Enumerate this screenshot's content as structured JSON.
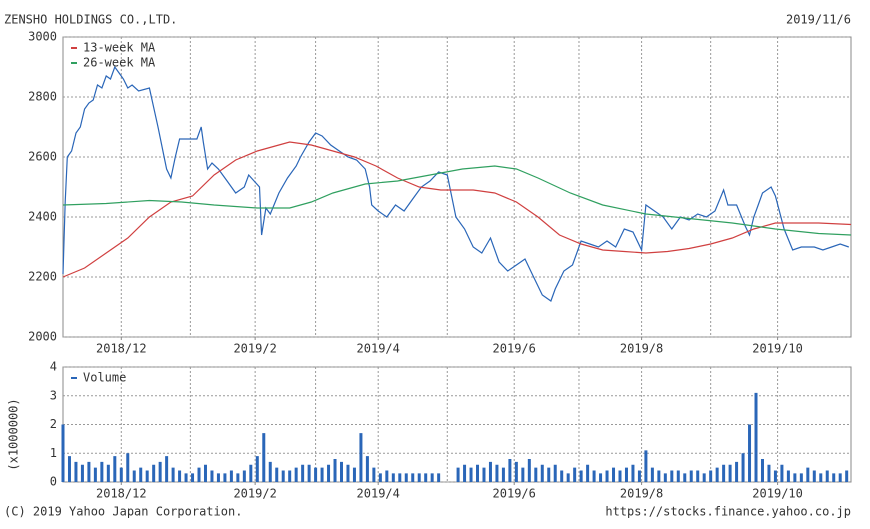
{
  "header": {
    "title": "ZENSHO HOLDINGS CO.,LTD.",
    "date": "2019/11/6"
  },
  "footer": {
    "copyright": "(C) 2019 Yahoo Japan Corporation.",
    "source": "https://stocks.finance.yahoo.co.jp"
  },
  "chart_data": [
    {
      "type": "line",
      "legend": "upper left",
      "grid": true,
      "xlim": [
        0,
        365
      ],
      "xticks": [
        {
          "value": 27,
          "label": "2018/12"
        },
        {
          "value": 89,
          "label": "2019/2"
        },
        {
          "value": 146,
          "label": "2019/4"
        },
        {
          "value": 209,
          "label": "2019/6"
        },
        {
          "value": 268,
          "label": "2019/8"
        },
        {
          "value": 331,
          "label": "2019/10"
        }
      ],
      "xgrid": [
        27,
        59,
        89,
        117,
        146,
        178,
        209,
        239,
        268,
        300,
        331
      ],
      "ylim": [
        2000,
        3000
      ],
      "yticks": [
        2000,
        2200,
        2400,
        2600,
        2800,
        3000
      ],
      "series": [
        {
          "color": "#2a66b8",
          "x": [
            0,
            1,
            2,
            4,
            6,
            8,
            10,
            12,
            14,
            16,
            18,
            20,
            22,
            24,
            26,
            28,
            30,
            32,
            35,
            40,
            44,
            48,
            50,
            52,
            54,
            58,
            62,
            64,
            65,
            67,
            69,
            72,
            76,
            80,
            84,
            86,
            91,
            92,
            94,
            96,
            100,
            104,
            108,
            110,
            114,
            117,
            120,
            124,
            128,
            132,
            136,
            140,
            142,
            143,
            146,
            150,
            154,
            158,
            162,
            166,
            170,
            174,
            178,
            182,
            186,
            190,
            194,
            198,
            202,
            206,
            210,
            214,
            218,
            222,
            226,
            228,
            232,
            236,
            240,
            244,
            248,
            252,
            256,
            260,
            264,
            268,
            270,
            274,
            278,
            282,
            286,
            290,
            294,
            298,
            302,
            306,
            308,
            312,
            316,
            318,
            320,
            322,
            324,
            328,
            330,
            334,
            338,
            342,
            348,
            352,
            356,
            360,
            364
          ],
          "values": [
            2210,
            2450,
            2600,
            2620,
            2680,
            2700,
            2760,
            2780,
            2790,
            2840,
            2830,
            2870,
            2860,
            2900,
            2880,
            2860,
            2830,
            2840,
            2820,
            2830,
            2700,
            2560,
            2530,
            2600,
            2660,
            2660,
            2660,
            2700,
            2650,
            2560,
            2580,
            2560,
            2520,
            2480,
            2500,
            2540,
            2500,
            2340,
            2430,
            2410,
            2480,
            2530,
            2570,
            2600,
            2650,
            2680,
            2670,
            2640,
            2620,
            2600,
            2590,
            2560,
            2500,
            2440,
            2420,
            2400,
            2440,
            2420,
            2460,
            2500,
            2520,
            2550,
            2540,
            2400,
            2360,
            2300,
            2280,
            2330,
            2250,
            2220,
            2240,
            2260,
            2200,
            2140,
            2120,
            2160,
            2220,
            2240,
            2320,
            2310,
            2300,
            2320,
            2300,
            2360,
            2350,
            2290,
            2440,
            2420,
            2400,
            2360,
            2400,
            2390,
            2410,
            2400,
            2420,
            2490,
            2440,
            2440,
            2370,
            2340,
            2400,
            2440,
            2480,
            2500,
            2470,
            2360,
            2290,
            2300,
            2300,
            2290,
            2300,
            2310,
            2300
          ]
        },
        {
          "name": "13-week MA",
          "color": "#d04040",
          "x": [
            0,
            10,
            20,
            30,
            40,
            50,
            60,
            70,
            80,
            90,
            100,
            105,
            115,
            125,
            135,
            145,
            155,
            165,
            175,
            190,
            200,
            210,
            220,
            230,
            240,
            250,
            260,
            270,
            280,
            290,
            300,
            310,
            320,
            330,
            340,
            350,
            365
          ],
          "values": [
            2200,
            2230,
            2280,
            2330,
            2400,
            2450,
            2470,
            2540,
            2590,
            2620,
            2640,
            2650,
            2640,
            2620,
            2600,
            2570,
            2530,
            2500,
            2490,
            2490,
            2480,
            2450,
            2400,
            2340,
            2310,
            2290,
            2285,
            2280,
            2285,
            2295,
            2310,
            2330,
            2360,
            2380,
            2380,
            2380,
            2375
          ]
        },
        {
          "name": "26-week MA",
          "color": "#30a060",
          "x": [
            0,
            20,
            40,
            55,
            70,
            90,
            105,
            115,
            125,
            140,
            155,
            170,
            185,
            200,
            210,
            220,
            235,
            250,
            270,
            290,
            310,
            330,
            350,
            365
          ],
          "values": [
            2440,
            2445,
            2455,
            2450,
            2440,
            2430,
            2430,
            2450,
            2480,
            2510,
            2520,
            2540,
            2560,
            2570,
            2560,
            2530,
            2480,
            2440,
            2410,
            2395,
            2380,
            2360,
            2345,
            2340
          ]
        }
      ]
    },
    {
      "type": "bar",
      "legend": "upper left",
      "grid": true,
      "ylabel": "(x1000000)",
      "xlim": [
        0,
        365
      ],
      "xticks": [
        {
          "value": 27,
          "label": "2018/12"
        },
        {
          "value": 89,
          "label": "2019/2"
        },
        {
          "value": 146,
          "label": "2019/4"
        },
        {
          "value": 209,
          "label": "2019/6"
        },
        {
          "value": 268,
          "label": "2019/8"
        },
        {
          "value": 331,
          "label": "2019/10"
        }
      ],
      "xgrid": [
        27,
        59,
        89,
        117,
        146,
        178,
        209,
        239,
        268,
        300,
        331
      ],
      "ylim": [
        0,
        4
      ],
      "yticks": [
        0,
        1,
        2,
        3,
        4
      ],
      "series": [
        {
          "name": "Volume",
          "color": "#2a66b8",
          "x": [
            0,
            3,
            6,
            9,
            12,
            15,
            18,
            21,
            24,
            27,
            30,
            33,
            36,
            39,
            42,
            45,
            48,
            51,
            54,
            57,
            60,
            63,
            66,
            69,
            72,
            75,
            78,
            81,
            84,
            87,
            90,
            93,
            96,
            99,
            102,
            105,
            108,
            111,
            114,
            117,
            120,
            123,
            126,
            129,
            132,
            135,
            138,
            141,
            144,
            147,
            150,
            153,
            156,
            159,
            162,
            165,
            168,
            171,
            174,
            177,
            180,
            183,
            186,
            189,
            192,
            195,
            198,
            201,
            204,
            207,
            210,
            213,
            216,
            219,
            222,
            225,
            228,
            231,
            234,
            237,
            240,
            243,
            246,
            249,
            252,
            255,
            258,
            261,
            264,
            267,
            270,
            273,
            276,
            279,
            282,
            285,
            288,
            291,
            294,
            297,
            300,
            303,
            306,
            309,
            312,
            315,
            318,
            321,
            324,
            327,
            330,
            333,
            336,
            339,
            342,
            345,
            348,
            351,
            354,
            357,
            360,
            363
          ],
          "values": [
            2.0,
            0.9,
            0.7,
            0.6,
            0.7,
            0.5,
            0.7,
            0.6,
            0.9,
            0.5,
            1.0,
            0.4,
            0.5,
            0.4,
            0.6,
            0.7,
            0.9,
            0.5,
            0.4,
            0.3,
            0.3,
            0.5,
            0.6,
            0.4,
            0.3,
            0.3,
            0.4,
            0.3,
            0.4,
            0.6,
            0.9,
            1.7,
            0.7,
            0.5,
            0.4,
            0.4,
            0.5,
            0.6,
            0.6,
            0.5,
            0.5,
            0.6,
            0.8,
            0.7,
            0.6,
            0.5,
            1.7,
            0.9,
            0.5,
            0.3,
            0.4,
            0.3,
            0.3,
            0.3,
            0.3,
            0.3,
            0.3,
            0.3,
            0.3,
            null,
            null,
            0.5,
            0.6,
            0.5,
            0.6,
            0.5,
            0.7,
            0.6,
            0.5,
            0.8,
            0.7,
            0.5,
            0.8,
            0.5,
            0.6,
            0.5,
            0.6,
            0.4,
            0.3,
            0.5,
            0.4,
            0.6,
            0.4,
            0.3,
            0.4,
            0.5,
            0.4,
            0.5,
            0.6,
            0.4,
            1.1,
            0.5,
            0.4,
            0.3,
            0.4,
            0.4,
            0.3,
            0.4,
            0.4,
            0.3,
            0.4,
            0.5,
            0.6,
            0.6,
            0.7,
            1.0,
            2.0,
            3.1,
            0.8,
            0.6,
            0.4,
            0.6,
            0.4,
            0.3,
            0.3,
            0.5,
            0.4,
            0.3,
            0.4,
            0.3,
            0.3,
            0.4
          ]
        }
      ]
    }
  ]
}
